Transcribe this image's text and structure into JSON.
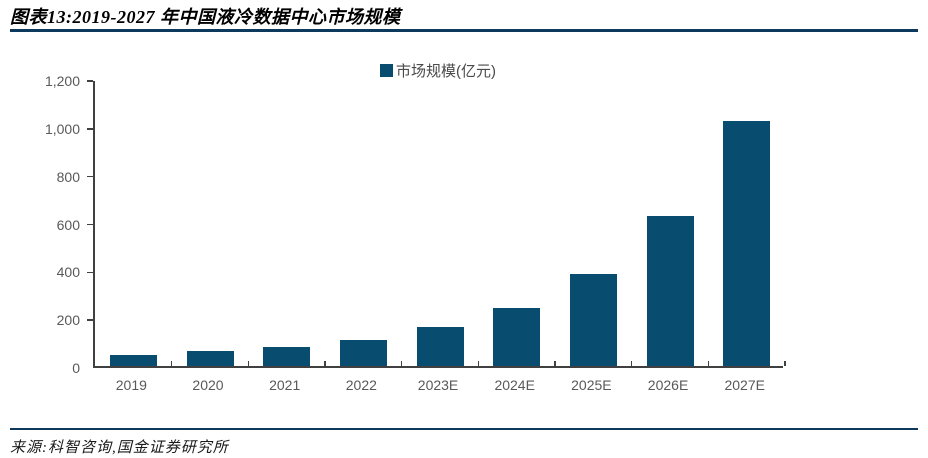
{
  "header": {
    "title": "图表13:2019-2027 年中国液冷数据中心市场规模"
  },
  "chart_data": {
    "type": "bar",
    "title": "图表13:2019-2027 年中国液冷数据中心市场规模",
    "legend": "市场规模(亿元)",
    "legend_position": "top-center",
    "categories": [
      "2019",
      "2020",
      "2021",
      "2022",
      "2023E",
      "2024E",
      "2025E",
      "2026E",
      "2027E"
    ],
    "values": [
      47,
      62,
      81,
      110,
      162,
      242,
      385,
      627,
      1025
    ],
    "unit": "亿元",
    "xlabel": "",
    "ylabel": "",
    "ylim": [
      0,
      1200
    ],
    "yticks": [
      0,
      200,
      400,
      600,
      800,
      1000,
      1200
    ],
    "grid": false,
    "colors": {
      "bar": "#084D70",
      "axis": "#404040",
      "tick_label": "#595959",
      "rule": "#0D3A5C"
    }
  },
  "footer": {
    "source": "来源:科智咨询,国金证券研究所"
  }
}
